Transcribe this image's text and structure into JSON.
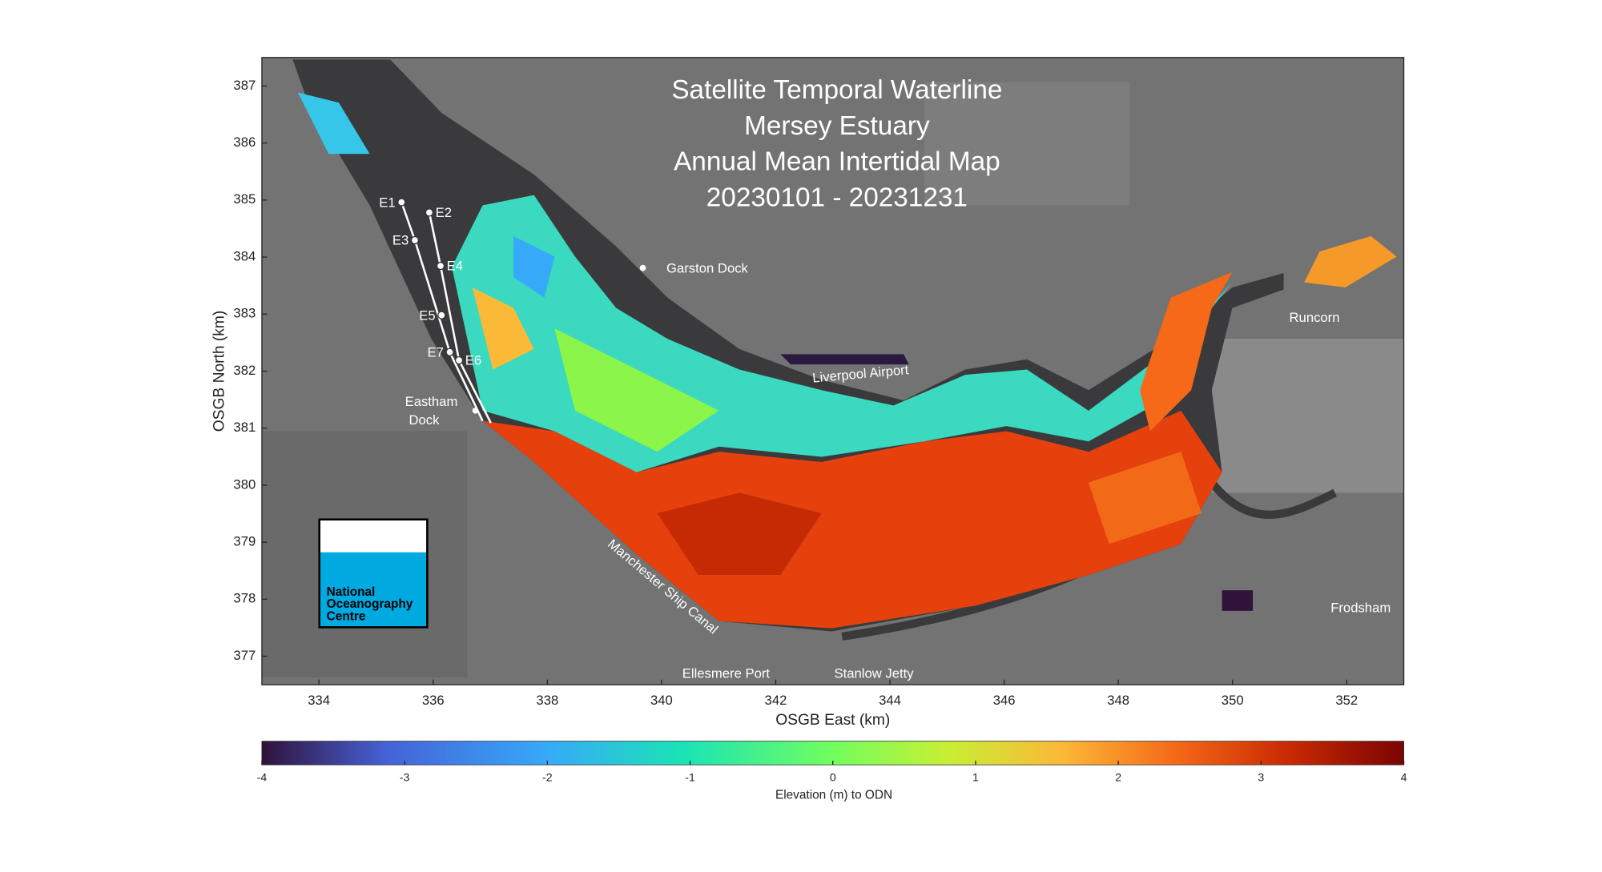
{
  "title": [
    "Satellite Temporal Waterline",
    "Mersey Estuary",
    "Annual Mean Intertidal Map",
    "20230101 - 20231231"
  ],
  "axes": {
    "xlabel": "OSGB East (km)",
    "ylabel": "OSGB North (km)",
    "xlim": [
      333,
      353
    ],
    "ylim": [
      376.5,
      387.5
    ],
    "xticks": [
      334,
      336,
      338,
      340,
      342,
      344,
      346,
      348,
      350,
      352
    ],
    "yticks": [
      377,
      378,
      379,
      380,
      381,
      382,
      383,
      384,
      385,
      386,
      387
    ]
  },
  "colorbar": {
    "label": "Elevation (m) to ODN",
    "lim": [
      -4,
      4
    ],
    "ticks": [
      -4,
      -3,
      -2,
      -1,
      0,
      1,
      2,
      3,
      4
    ]
  },
  "places": [
    "Garston Dock",
    "Liverpool Airport",
    "Runcorn",
    "Eastham",
    "Dock",
    "Manchester Ship Canal",
    "Ellesmere Port",
    "Stanlow Jetty",
    "Frodsham"
  ],
  "stations": [
    "E1",
    "E2",
    "E3",
    "E4",
    "E5",
    "E6",
    "E7"
  ],
  "logo": [
    "National",
    "Oceanography",
    "Centre"
  ]
}
